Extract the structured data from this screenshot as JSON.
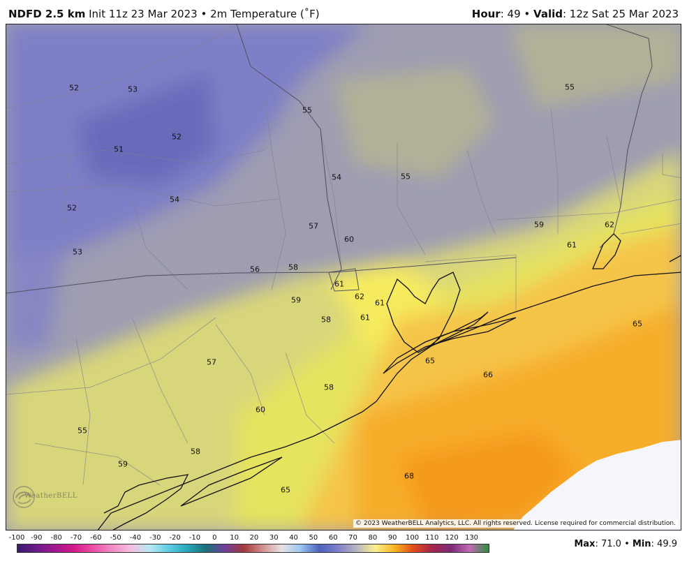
{
  "header": {
    "model": "NDFD 2.5 km",
    "init": "Init 11z 23 Mar 2023",
    "separator": "•",
    "field": "2m Temperature (˚F)",
    "hour_label": "Hour",
    "hour_value": ": 49",
    "valid_label": "Valid",
    "valid_value": ": 12z Sat 25 Mar 2023"
  },
  "map": {
    "values": [
      "52",
      "53",
      "55",
      "55",
      "51",
      "52",
      "54",
      "55",
      "52",
      "54",
      "57",
      "60",
      "59",
      "62",
      "61",
      "53",
      "56",
      "58",
      "61",
      "59",
      "62",
      "61",
      "58",
      "61",
      "65",
      "57",
      "65",
      "66",
      "58",
      "60",
      "55",
      "58",
      "59",
      "68",
      "65"
    ],
    "copyright": "© 2023 WeatherBELL Analytics, LLC. All rights reserved. License required for commercial distribution.",
    "logo": "WeatherBELL"
  },
  "colorbar": {
    "ticks": [
      "-100",
      "-90",
      "-80",
      "-70",
      "-60",
      "-50",
      "-40",
      "-30",
      "-20",
      "-10",
      "0",
      "10",
      "20",
      "30",
      "40",
      "50",
      "60",
      "70",
      "80",
      "90",
      "100",
      "110",
      "120",
      "130"
    ],
    "colors": [
      "#3a1a6e",
      "#6a1a8a",
      "#a0198f",
      "#d21a8c",
      "#ec4fa6",
      "#f08cc6",
      "#f5bde0",
      "#b8e8f3",
      "#5fcfe4",
      "#27a7b8",
      "#1b6f7a",
      "#6f3f99",
      "#a33a3a",
      "#d38e8e",
      "#e7e2e2",
      "#9cc8f0",
      "#4c62bd",
      "#7d7fca",
      "#b7b6c0",
      "#fbf08a",
      "#f8b41e",
      "#e14d1b",
      "#a3254c",
      "#7e2a78",
      "#c16bb3",
      "#2a8f3e"
    ]
  },
  "stats": {
    "max_label": "Max",
    "max_value": ": 71.0",
    "sep": "•",
    "min_label": "Min",
    "min_value": ": 49.9"
  }
}
